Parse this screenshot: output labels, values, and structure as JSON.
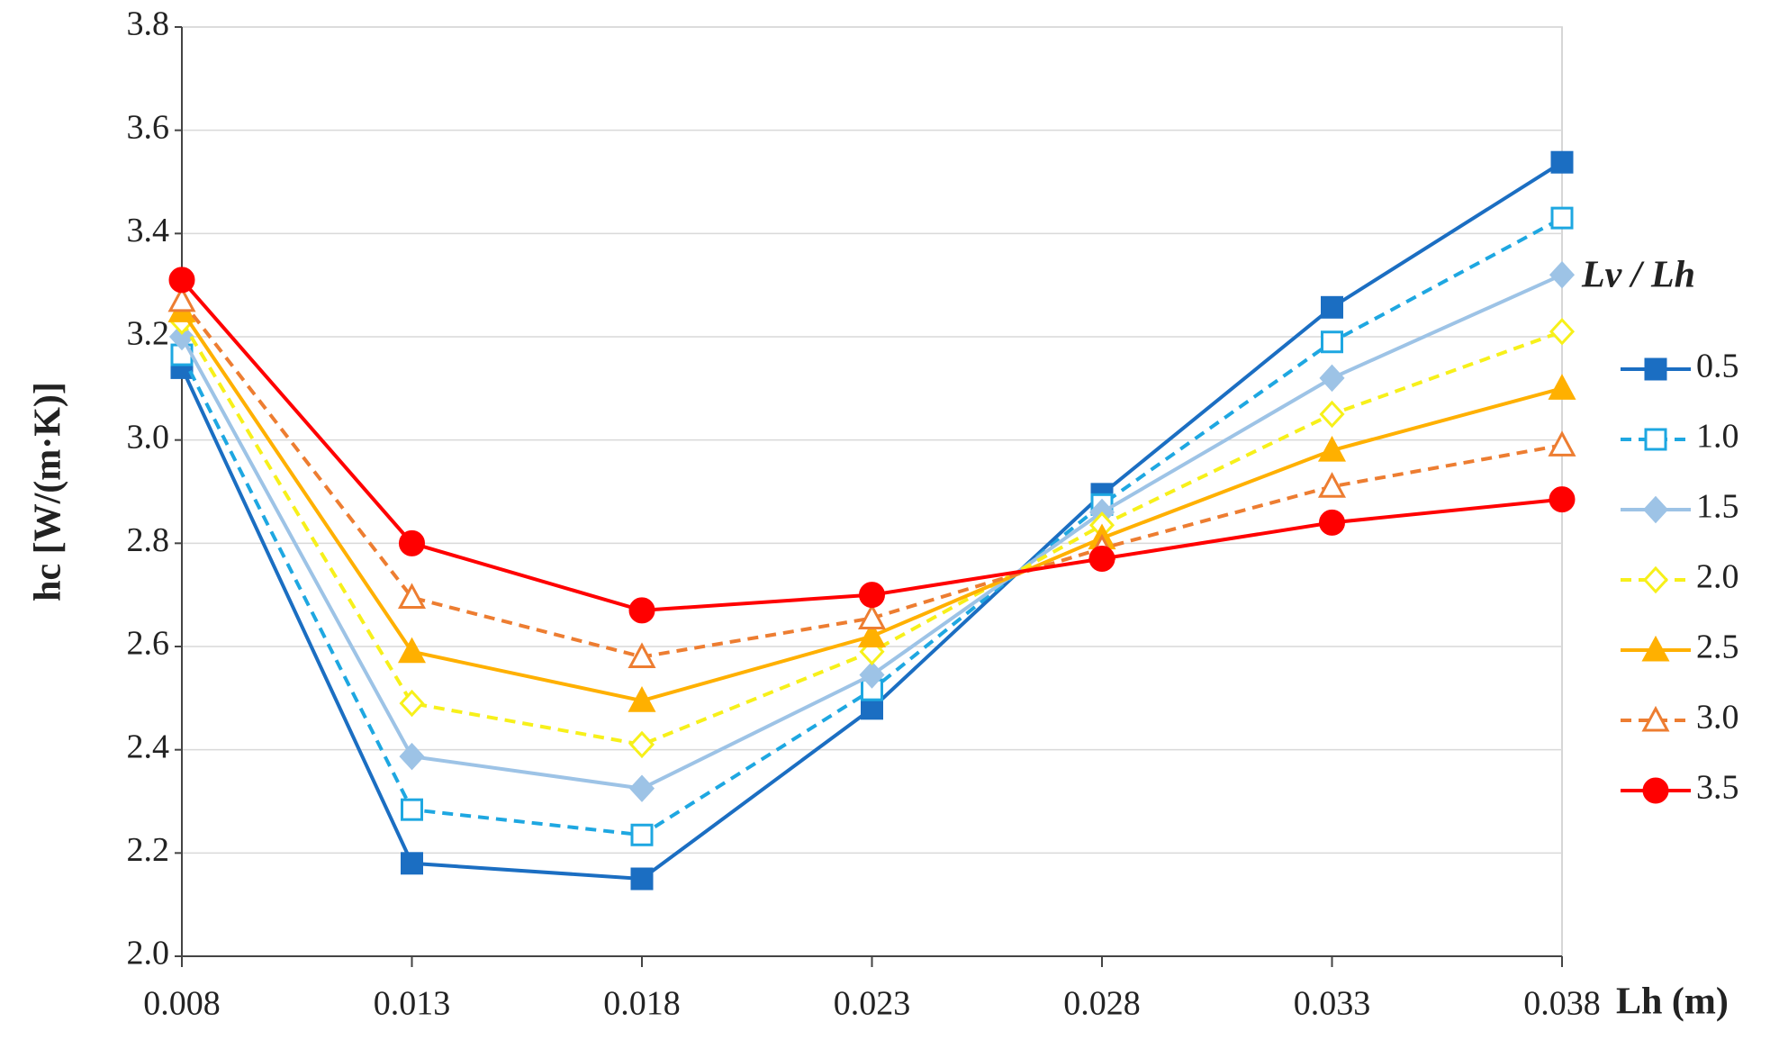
{
  "chart_data": {
    "type": "line",
    "x_label": "Lh (m)",
    "y_label": "hc [W/(m·K)]",
    "legend_title": "Lv / Lh",
    "x": [
      0.008,
      0.013,
      0.018,
      0.023,
      0.028,
      0.033,
      0.038
    ],
    "xlim": [
      0.008,
      0.038
    ],
    "xticks": [
      0.008,
      0.013,
      0.018,
      0.023,
      0.028,
      0.033,
      0.038
    ],
    "ylim": [
      2.0,
      3.8
    ],
    "yticks": [
      {
        "value": 2.0,
        "label": "2.0"
      },
      2.2,
      2.4,
      2.6,
      2.8,
      {
        "value": 3.0,
        "label": "3.0"
      },
      3.2,
      3.4,
      3.6,
      3.8
    ],
    "grid": true,
    "legend_position": "right",
    "series": [
      {
        "name": "0.5",
        "color": "#1b6ec2",
        "dashed": false,
        "marker": "square",
        "filled": true,
        "values": [
          3.14,
          2.18,
          2.15,
          2.48,
          2.895,
          3.257,
          3.538
        ]
      },
      {
        "name": "1.0",
        "color": "#1ea7e1",
        "dashed": true,
        "marker": "square",
        "filled": false,
        "values": [
          3.165,
          2.284,
          2.235,
          2.516,
          2.875,
          3.19,
          3.43
        ]
      },
      {
        "name": "1.5",
        "color": "#9dc3e6",
        "dashed": false,
        "marker": "diamond",
        "filled": true,
        "values": [
          3.2,
          2.387,
          2.325,
          2.545,
          2.86,
          3.12,
          3.32
        ]
      },
      {
        "name": "2.0",
        "color": "#f7f01a",
        "dashed": true,
        "marker": "diamond",
        "filled": false,
        "values": [
          3.23,
          2.49,
          2.41,
          2.59,
          2.835,
          3.05,
          3.21
        ]
      },
      {
        "name": "2.5",
        "color": "#ffb000",
        "dashed": false,
        "marker": "triangle",
        "filled": true,
        "values": [
          3.25,
          2.59,
          2.495,
          2.62,
          2.81,
          2.98,
          3.1
        ]
      },
      {
        "name": "3.0",
        "color": "#ed7d31",
        "dashed": true,
        "marker": "triangle",
        "filled": false,
        "values": [
          3.27,
          2.695,
          2.58,
          2.655,
          2.79,
          2.91,
          2.99
        ]
      },
      {
        "name": "3.5",
        "color": "#ff0000",
        "dashed": false,
        "marker": "circle",
        "filled": true,
        "values": [
          3.31,
          2.8,
          2.67,
          2.7,
          2.77,
          2.84,
          2.885
        ]
      }
    ]
  }
}
